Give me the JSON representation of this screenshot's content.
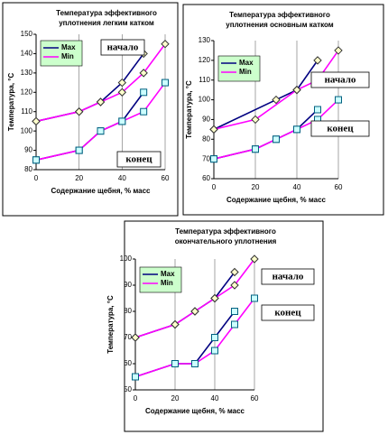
{
  "chart_data": [
    {
      "type": "line",
      "title": [
        "Температура эффективного",
        "уплотнения легким катком"
      ],
      "xlabel": "Содержание щебня, % масс",
      "ylabel": "Температура, °С",
      "xlim": [
        0,
        60
      ],
      "xticks": [
        0,
        20,
        40,
        60
      ],
      "ylim": [
        80,
        150
      ],
      "yticks": [
        80,
        90,
        100,
        110,
        120,
        130,
        140,
        150
      ],
      "grid": true,
      "annotations": [
        "начало",
        "конец"
      ],
      "series": [
        {
          "name": "Max",
          "color": "#000080",
          "marker": "diamond",
          "x": [
            0,
            20,
            30,
            40,
            50
          ],
          "values": [
            105,
            110,
            115,
            125,
            140
          ]
        },
        {
          "name": "Min",
          "color": "#ff00ff",
          "marker": "diamond",
          "x": [
            0,
            20,
            30,
            40,
            50,
            60
          ],
          "values": [
            105,
            110,
            115,
            120,
            130,
            145
          ]
        },
        {
          "name": "Max",
          "color": "#000080",
          "marker": "square",
          "x": [
            0,
            20,
            30,
            40,
            50
          ],
          "values": [
            85,
            90,
            100,
            105,
            120
          ]
        },
        {
          "name": "Min",
          "color": "#ff00ff",
          "marker": "square",
          "x": [
            0,
            20,
            30,
            40,
            50,
            60
          ],
          "values": [
            85,
            90,
            100,
            105,
            110,
            125
          ]
        }
      ]
    },
    {
      "type": "line",
      "title": [
        "Температура эффективного",
        "уплотнения основным катком"
      ],
      "xlabel": "Содержание щебня, % масс",
      "ylabel": "Температура, °С",
      "xlim": [
        0,
        60
      ],
      "xticks": [
        0,
        20,
        40,
        60
      ],
      "ylim": [
        60,
        130
      ],
      "yticks": [
        60,
        70,
        80,
        90,
        100,
        110,
        120,
        130
      ],
      "grid": true,
      "annotations": [
        "начало",
        "конец"
      ],
      "series": [
        {
          "name": "Max",
          "color": "#000080",
          "marker": "diamond",
          "x": [
            0,
            30,
            40,
            50
          ],
          "values": [
            85,
            100,
            105,
            120
          ]
        },
        {
          "name": "Min",
          "color": "#ff00ff",
          "marker": "diamond",
          "x": [
            0,
            20,
            40,
            50,
            60
          ],
          "values": [
            85,
            90,
            105,
            110,
            125
          ]
        },
        {
          "name": "Max",
          "color": "#000080",
          "marker": "square",
          "x": [
            0,
            20,
            30,
            40,
            50
          ],
          "values": [
            70,
            75,
            80,
            85,
            95
          ]
        },
        {
          "name": "Min",
          "color": "#ff00ff",
          "marker": "square",
          "x": [
            0,
            20,
            30,
            40,
            50,
            60
          ],
          "values": [
            70,
            75,
            80,
            85,
            90,
            100
          ]
        }
      ]
    },
    {
      "type": "line",
      "title": [
        "Температура эффективного",
        "окончательного уплотнения"
      ],
      "xlabel": "Содержание щебня, % масс",
      "ylabel": "Температура, °С",
      "xlim": [
        0,
        60
      ],
      "xticks": [
        0,
        20,
        40,
        60
      ],
      "ylim": [
        50,
        100
      ],
      "yticks": [
        50,
        60,
        70,
        80,
        90,
        100
      ],
      "grid": true,
      "annotations": [
        "начало",
        "конец"
      ],
      "series": [
        {
          "name": "Max",
          "color": "#000080",
          "marker": "diamond",
          "x": [
            0,
            20,
            30,
            40,
            50
          ],
          "values": [
            70,
            75,
            80,
            85,
            95
          ]
        },
        {
          "name": "Min",
          "color": "#ff00ff",
          "marker": "diamond",
          "x": [
            0,
            20,
            30,
            40,
            50,
            60
          ],
          "values": [
            70,
            75,
            80,
            85,
            90,
            100
          ]
        },
        {
          "name": "Max",
          "color": "#000080",
          "marker": "square",
          "x": [
            0,
            20,
            30,
            40,
            50
          ],
          "values": [
            55,
            60,
            60,
            70,
            80
          ]
        },
        {
          "name": "Min",
          "color": "#ff00ff",
          "marker": "square",
          "x": [
            0,
            20,
            30,
            40,
            50,
            60
          ],
          "values": [
            55,
            60,
            60,
            65,
            75,
            85
          ]
        }
      ]
    }
  ]
}
